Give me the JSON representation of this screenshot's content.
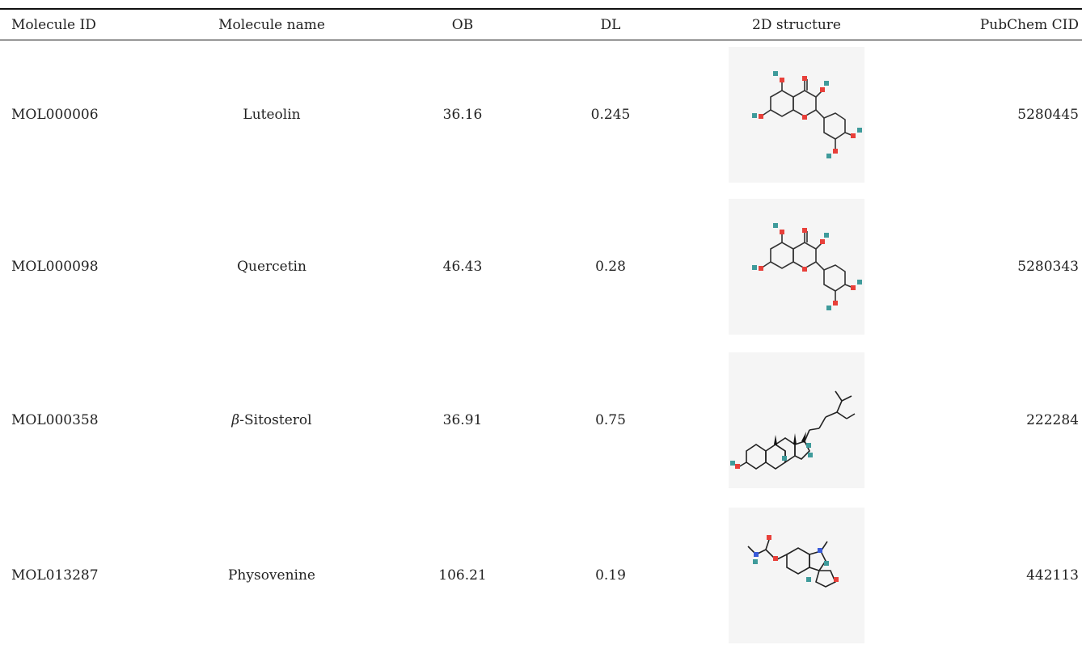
{
  "table": {
    "headers": {
      "id": "Molecule ID",
      "name": "Molecule name",
      "ob": "OB",
      "dl": "DL",
      "structure": "2D structure",
      "cid": "PubChem CID"
    },
    "rows": [
      {
        "id": "MOL000006",
        "name": "Luteolin",
        "ob": "36.16",
        "dl": "0.245",
        "cid": "5280445",
        "structure_icon": "luteolin-structure"
      },
      {
        "id": "MOL000098",
        "name": "Quercetin",
        "ob": "46.43",
        "dl": "0.28",
        "cid": "5280343",
        "structure_icon": "quercetin-structure"
      },
      {
        "id": "MOL000358",
        "name_prefix": "β",
        "name_suffix": "-Sitosterol",
        "ob": "36.91",
        "dl": "0.75",
        "cid": "222284",
        "structure_icon": "sitosterol-structure"
      },
      {
        "id": "MOL013287",
        "name": "Physovenine",
        "ob": "106.21",
        "dl": "0.19",
        "cid": "442113",
        "structure_icon": "physovenine-structure"
      }
    ]
  },
  "colors": {
    "oxygen": "#e8403a",
    "hydrogen": "#3f9b9b",
    "nitrogen": "#3a5bd9",
    "bond": "#333333",
    "structure_bg": "#f5f5f5"
  }
}
